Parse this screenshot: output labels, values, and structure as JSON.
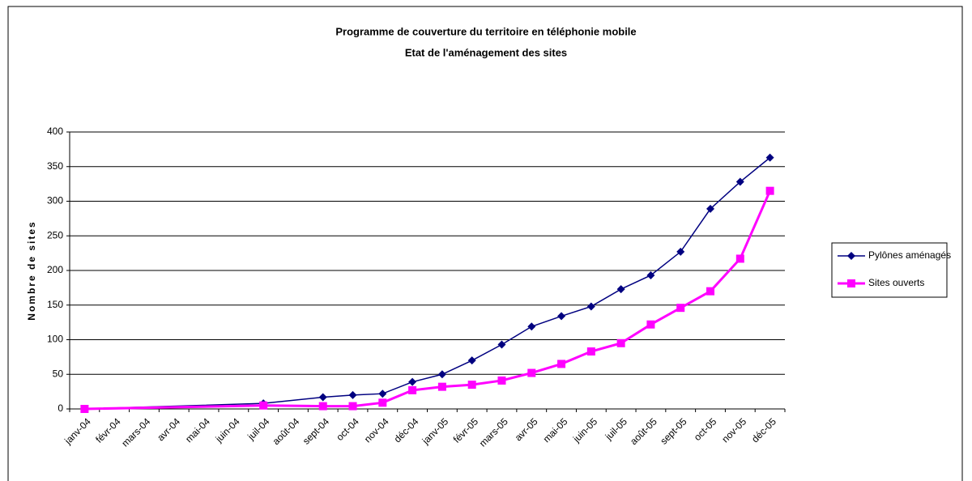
{
  "chart_data": {
    "type": "line",
    "title": "Programme de couverture du territoire en téléphonie mobile",
    "subtitle": "Etat de l'aménagement des sites",
    "y_label": "Nombre de sites",
    "categories": [
      "janv-04",
      "févr-04",
      "mars-04",
      "avr-04",
      "mai-04",
      "juin-04",
      "juil-04",
      "août-04",
      "sept-04",
      "oct-04",
      "nov-04",
      "déc-04",
      "janv-05",
      "févr-05",
      "mars-05",
      "avr-05",
      "mai-05",
      "juin-05",
      "juil-05",
      "août-05",
      "sept-05",
      "oct-05",
      "nov-05",
      "déc-05"
    ],
    "series": [
      {
        "name": "Pylônes aménagés",
        "color": "#000080",
        "marker": "diamond",
        "values": [
          0,
          null,
          null,
          null,
          null,
          null,
          8,
          null,
          17,
          20,
          22,
          39,
          50,
          70,
          93,
          119,
          134,
          148,
          173,
          193,
          227,
          289,
          328,
          363
        ]
      },
      {
        "name": "Sites ouverts",
        "color": "#ff00ff",
        "marker": "square",
        "values": [
          0,
          null,
          null,
          null,
          null,
          null,
          5,
          null,
          4,
          4,
          9,
          27,
          32,
          35,
          41,
          52,
          65,
          83,
          95,
          122,
          146,
          170,
          217,
          315
        ]
      }
    ],
    "connect_gaps": true,
    "ylim": [
      0,
      400
    ],
    "yticks": [
      0,
      50,
      100,
      150,
      200,
      250,
      300,
      350,
      400
    ],
    "grid": true,
    "legend": "right"
  }
}
